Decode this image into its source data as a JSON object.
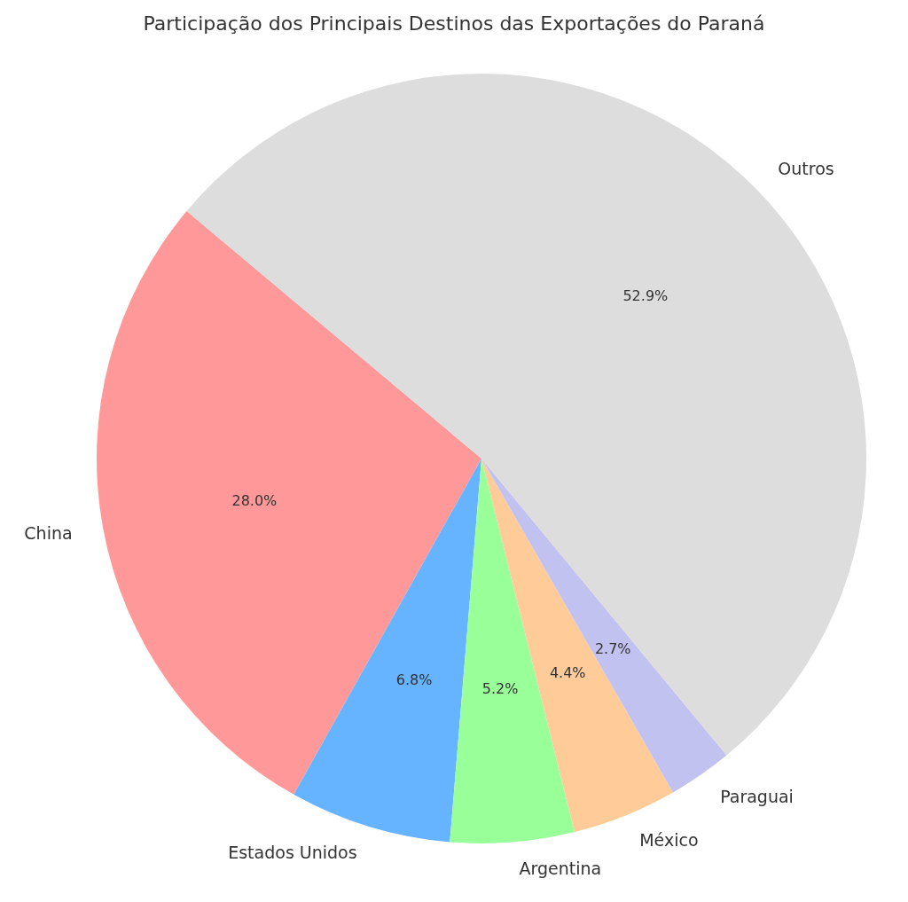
{
  "chart_data": {
    "type": "pie",
    "title": "Participação dos Principais Destinos das Exportações do Paraná",
    "categories": [
      "China",
      "Estados Unidos",
      "Argentina",
      "México",
      "Paraguai",
      "Outros"
    ],
    "values": [
      28.0,
      6.8,
      5.2,
      4.4,
      2.7,
      52.9
    ],
    "value_labels": [
      "28.0%",
      "6.8%",
      "5.2%",
      "4.4%",
      "2.7%",
      "52.9%"
    ],
    "colors": [
      "#ff9999",
      "#66b3ff",
      "#99ff99",
      "#ffcc99",
      "#c2c2f0",
      "#dddddd"
    ],
    "legend": false
  }
}
